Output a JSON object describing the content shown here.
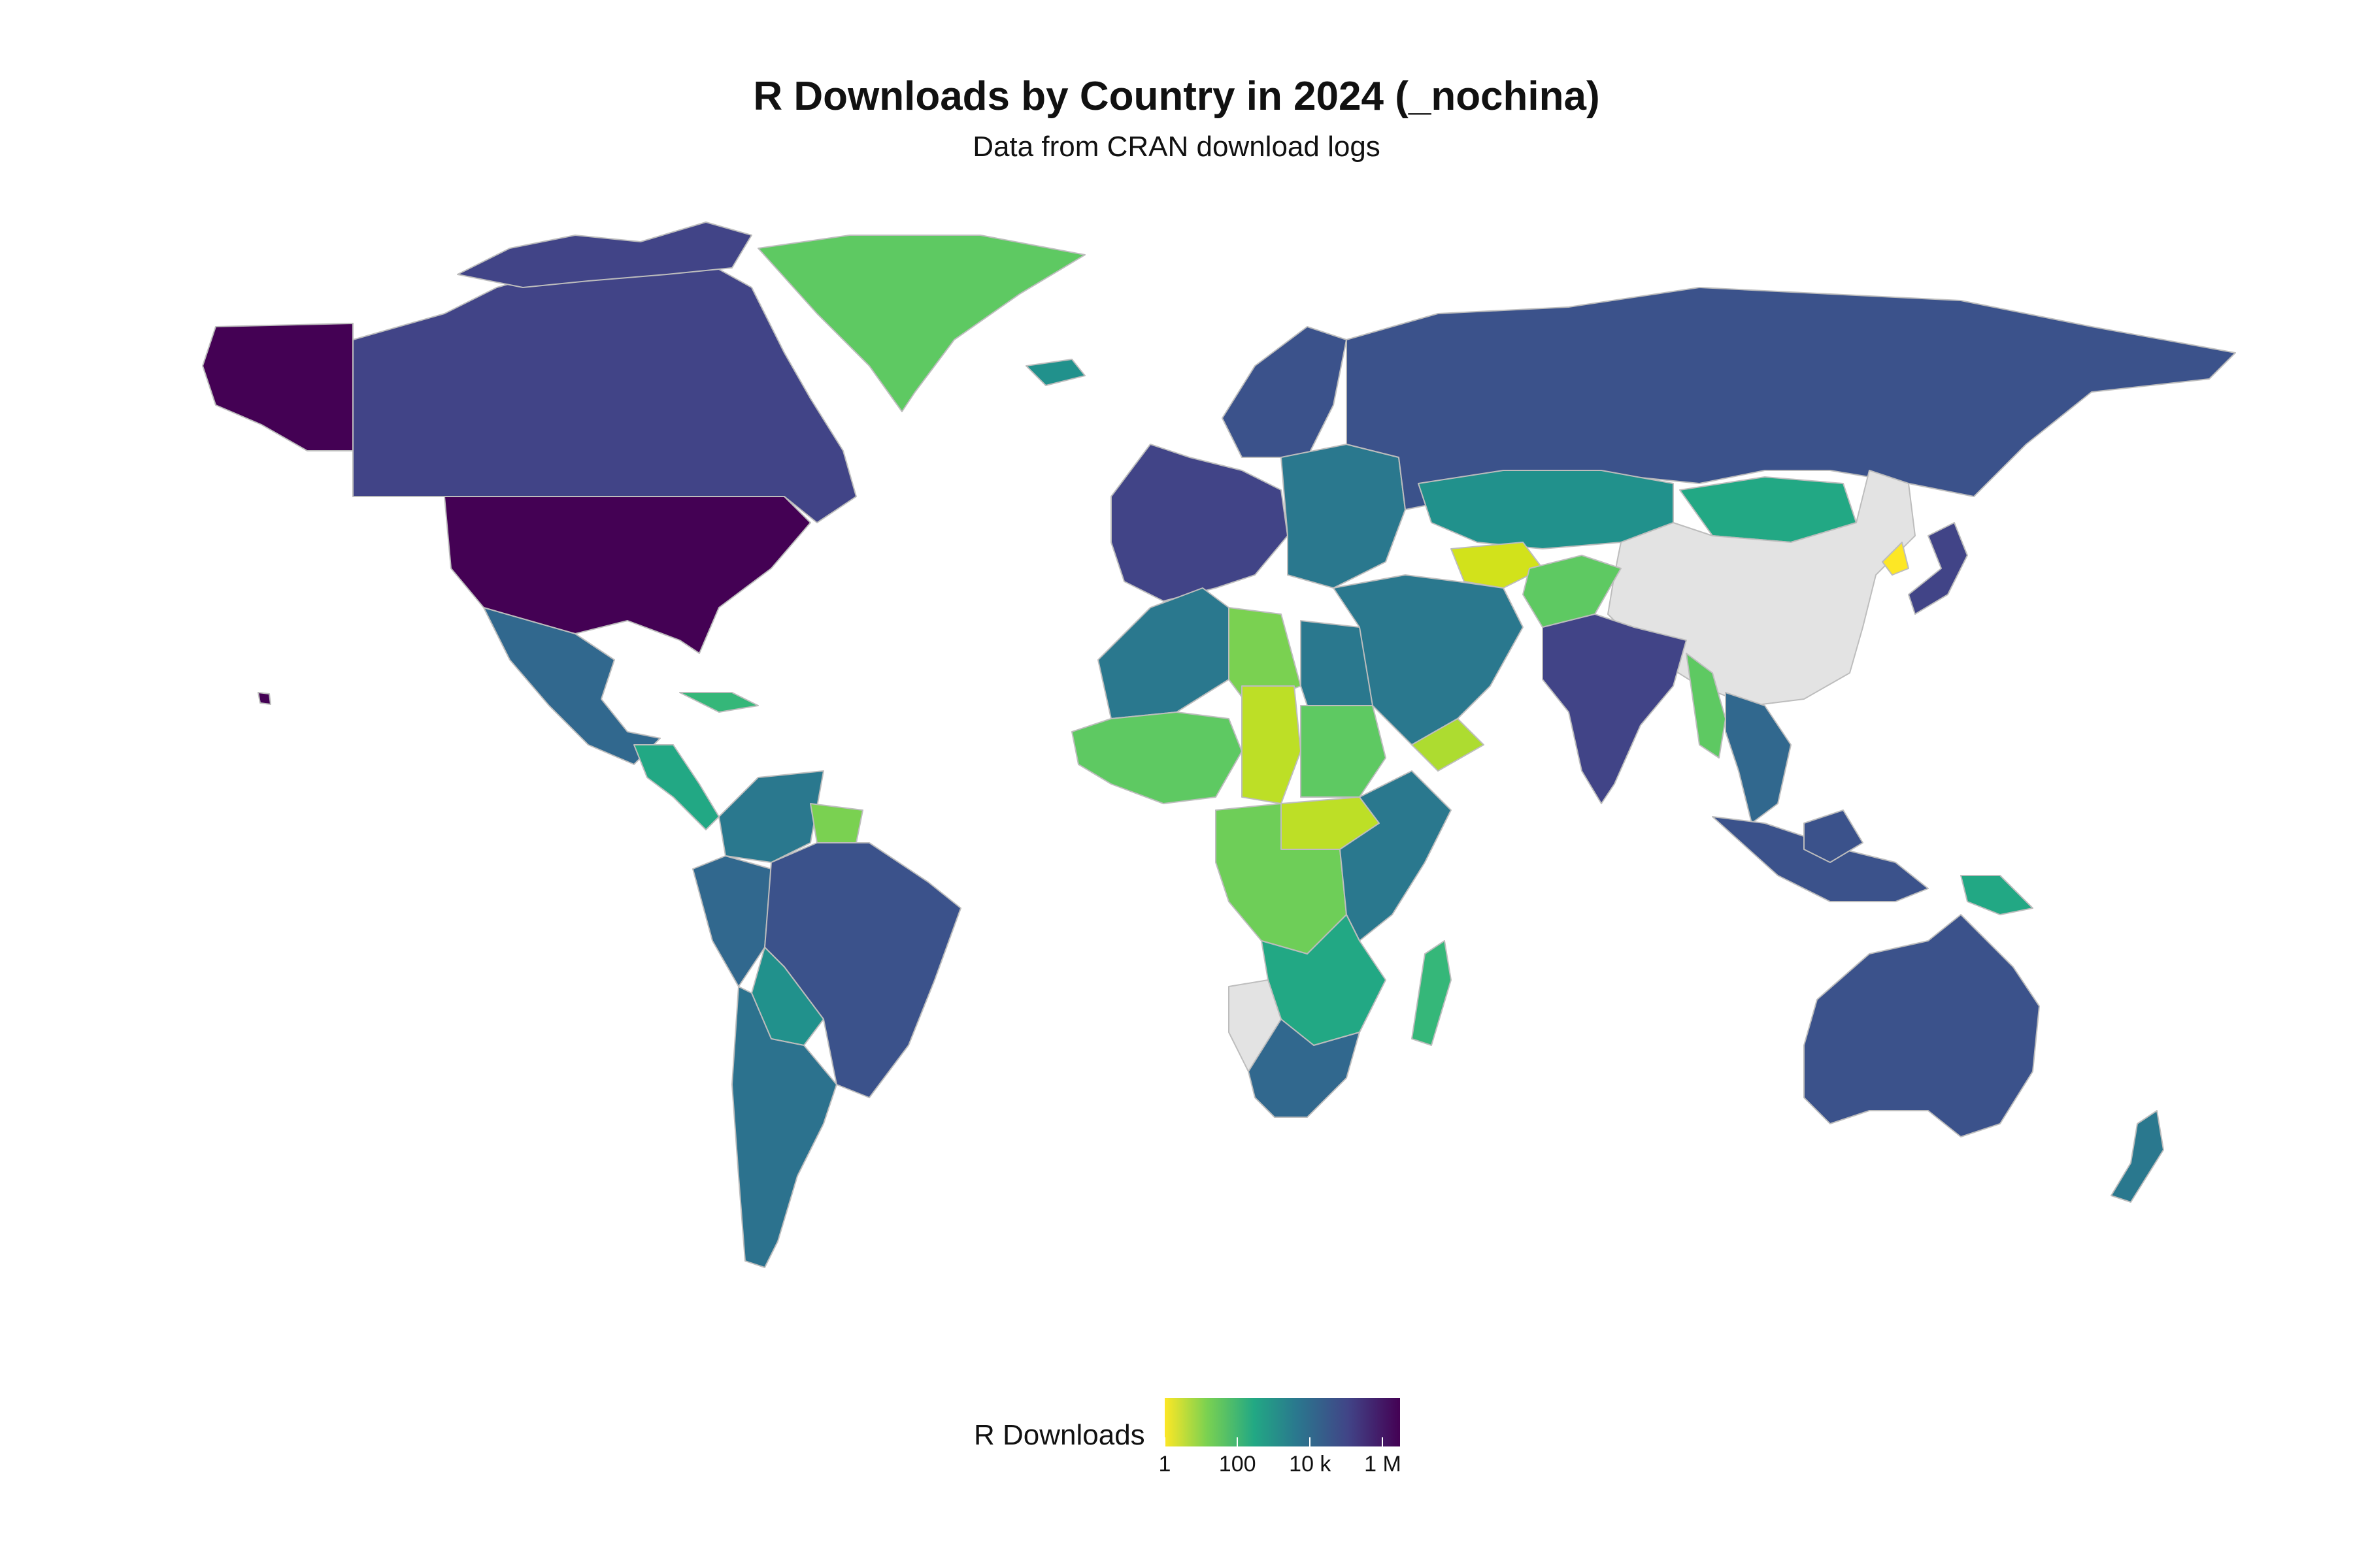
{
  "title": "R Downloads by Country in 2024 (_nochina)",
  "subtitle": "Data from CRAN download logs",
  "legend": {
    "title": "R Downloads",
    "scale": "log10",
    "palette": [
      "#fde725",
      "#7ad151",
      "#22a884",
      "#2a788e",
      "#414487",
      "#440154"
    ],
    "ticks": [
      "1",
      "100",
      "10 k",
      "1 M"
    ],
    "tick_values": [
      1,
      100,
      10000,
      1000000
    ],
    "range": [
      1,
      3000000
    ]
  },
  "colors": {
    "no_data": "#e3e3e3",
    "border": "#bdbdbd",
    "background": "#ffffff"
  },
  "regions": [
    {
      "id": "usa",
      "color": "#440154"
    },
    {
      "id": "alaska",
      "color": "#440154"
    },
    {
      "id": "hawaii",
      "color": "#440154"
    },
    {
      "id": "canada",
      "color": "#414487"
    },
    {
      "id": "greenland",
      "color": "#5ec962"
    },
    {
      "id": "mexico",
      "color": "#31688e"
    },
    {
      "id": "central-america",
      "color": "#22a884"
    },
    {
      "id": "caribbean",
      "color": "#35b779"
    },
    {
      "id": "colombia-venezuela",
      "color": "#2a788e"
    },
    {
      "id": "guianas",
      "color": "#7ad151"
    },
    {
      "id": "brazil",
      "color": "#3b528b"
    },
    {
      "id": "peru",
      "color": "#31688e"
    },
    {
      "id": "bolivia",
      "color": "#21918c"
    },
    {
      "id": "argentina-chile",
      "color": "#2c728e"
    },
    {
      "id": "western-europe",
      "color": "#414487"
    },
    {
      "id": "eastern-europe",
      "color": "#2a788e"
    },
    {
      "id": "scandinavia",
      "color": "#3b528b"
    },
    {
      "id": "iceland",
      "color": "#21918c"
    },
    {
      "id": "russia",
      "color": "#3b528b"
    },
    {
      "id": "kazakhstan-central-asia",
      "color": "#21918c"
    },
    {
      "id": "mongolia",
      "color": "#22a884"
    },
    {
      "id": "china",
      "color": "#e3e3e3"
    },
    {
      "id": "north-korea",
      "color": "#fde725"
    },
    {
      "id": "japan",
      "color": "#414487"
    },
    {
      "id": "turkmenistan",
      "color": "#d2e21b"
    },
    {
      "id": "afghanistan",
      "color": "#5ec962"
    },
    {
      "id": "middle-east",
      "color": "#2a788e"
    },
    {
      "id": "yemen",
      "color": "#addc30"
    },
    {
      "id": "india",
      "color": "#414487"
    },
    {
      "id": "myanmar",
      "color": "#5ec962"
    },
    {
      "id": "southeast-asia",
      "color": "#31688e"
    },
    {
      "id": "indonesia",
      "color": "#3b528b"
    },
    {
      "id": "papua",
      "color": "#22a884"
    },
    {
      "id": "australia",
      "color": "#3b528b"
    },
    {
      "id": "new-zealand",
      "color": "#2a788e"
    },
    {
      "id": "north-africa",
      "color": "#2a788e"
    },
    {
      "id": "libya",
      "color": "#7ad151"
    },
    {
      "id": "west-africa",
      "color": "#5ec962"
    },
    {
      "id": "chad",
      "color": "#bddf26"
    },
    {
      "id": "sudan",
      "color": "#5ec962"
    },
    {
      "id": "south-sudan",
      "color": "#bddf26"
    },
    {
      "id": "central-africa",
      "color": "#6ece58"
    },
    {
      "id": "east-africa",
      "color": "#2a788e"
    },
    {
      "id": "southern-africa",
      "color": "#22a884"
    },
    {
      "id": "namibia",
      "color": "#e3e3e3"
    },
    {
      "id": "south-africa",
      "color": "#31688e"
    },
    {
      "id": "madagascar",
      "color": "#35b779"
    }
  ]
}
